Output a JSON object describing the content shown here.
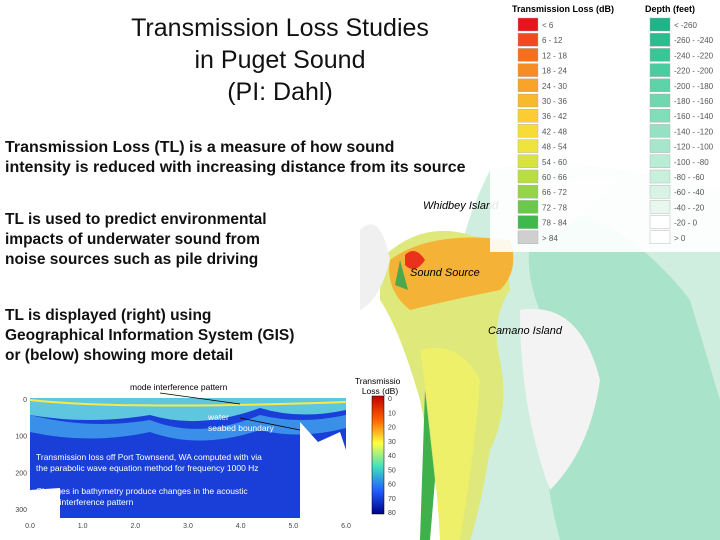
{
  "header": {
    "title_lines": [
      "Transmission Loss Studies",
      "in Puget Sound",
      "(PI: Dahl)"
    ]
  },
  "bullets": [
    {
      "lines": [
        "Transmission Loss (TL) is a measure of how sound",
        "intensity is reduced with increasing distance from its source"
      ]
    },
    {
      "lines": [
        "TL is used to predict environmental",
        "impacts of underwater sound from",
        "noise sources such as pile driving"
      ]
    },
    {
      "lines": [
        "TL is displayed (right) using",
        "Geographical Information System (GIS)",
        "or (below) showing more detail"
      ]
    }
  ],
  "map": {
    "labels": [
      "Whidbey Island",
      "Sound Source",
      "Camano Island"
    ]
  },
  "legend": {
    "tl_title": "Transmission Loss (dB)",
    "depth_title": "Depth (feet)",
    "tl_items": [
      "< 6",
      "6 - 12",
      "12 - 18",
      "18 - 24",
      "24 - 30",
      "30 - 36",
      "36 - 42",
      "42 - 48",
      "48 - 54",
      "54 - 60",
      "60 - 66",
      "66 - 72",
      "72 - 78",
      "78 - 84",
      "> 84"
    ],
    "depth_items": [
      "< -260",
      "-260 - -240",
      "-240 - -220",
      "-220 - -200",
      "-200 - -180",
      "-180 - -160",
      "-160 - -140",
      "-140 - -120",
      "-120 - -100",
      "-100 - -80",
      "-80 - -60",
      "-60 - -40",
      "-40 - -20",
      "-20 - 0",
      "> 0"
    ]
  },
  "figure": {
    "annotations": [
      "mode interference pattern",
      "water",
      "seabed boundary"
    ],
    "caption_1": [
      "Transmission loss off Port Townsend, WA computed with via",
      "the parabolic wave equation method for frequency 1000 Hz"
    ],
    "caption_2": [
      "Changes in bathymetry produce changes in the acoustic",
      "mode interference pattern"
    ],
    "colorbar_title": [
      "Transmission",
      "Loss (dB)"
    ],
    "colorbar_ticks": [
      "0",
      "10",
      "20",
      "30",
      "40",
      "50",
      "60",
      "70",
      "80"
    ],
    "x_ticks": [
      "0.0",
      "1.0",
      "2.0",
      "3.0",
      "4.0",
      "5.0",
      "6.0"
    ],
    "y_ticks": [
      "0",
      "100",
      "200",
      "300"
    ]
  }
}
